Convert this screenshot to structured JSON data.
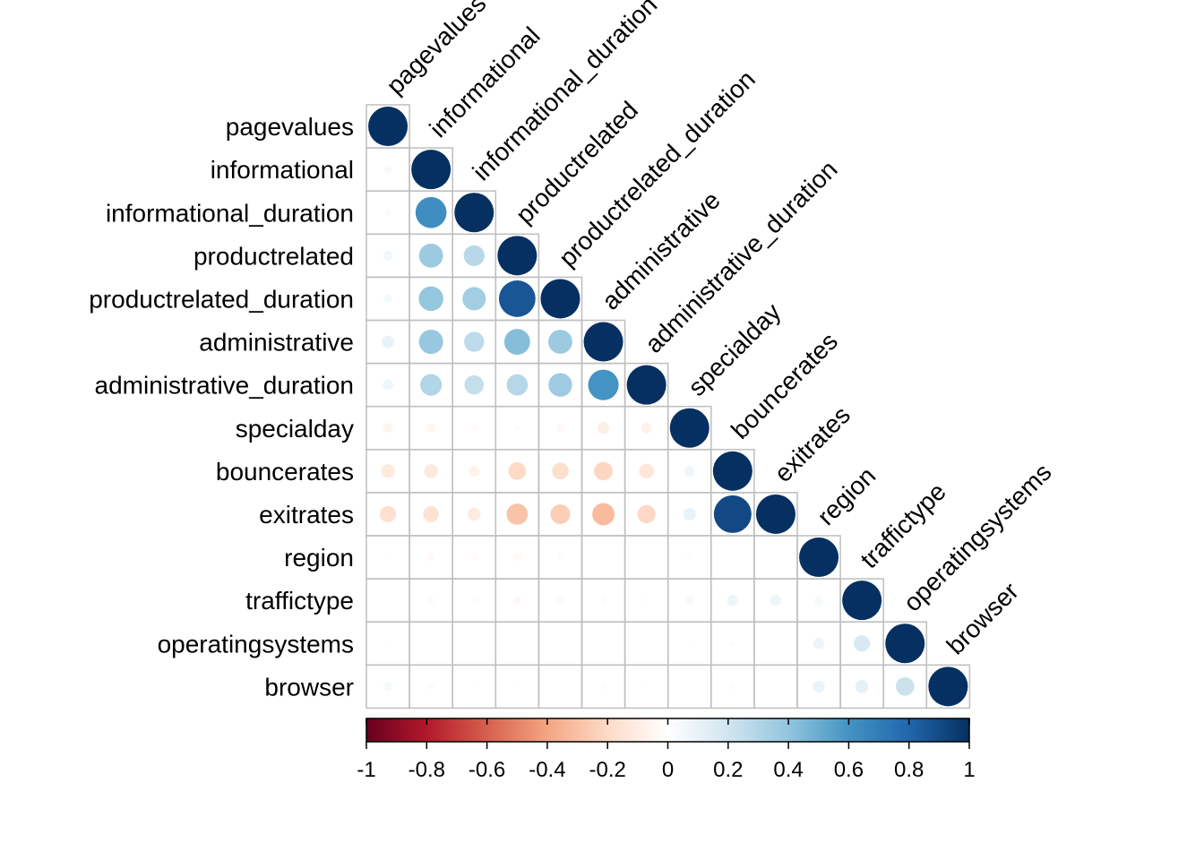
{
  "chart_data": {
    "type": "heatmap",
    "subtype": "correlation-circle-lower-triangle",
    "variables": [
      "pagevalues",
      "informational",
      "informational_duration",
      "productrelated",
      "productrelated_duration",
      "administrative",
      "administrative_duration",
      "specialday",
      "bouncerates",
      "exitrates",
      "region",
      "traffictype",
      "operatingsystems",
      "browser"
    ],
    "matrix": [
      [
        1.0
      ],
      [
        0.04,
        1.0
      ],
      [
        0.03,
        0.62,
        1.0
      ],
      [
        0.06,
        0.37,
        0.28,
        1.0
      ],
      [
        0.05,
        0.39,
        0.35,
        0.86,
        1.0
      ],
      [
        0.1,
        0.38,
        0.26,
        0.43,
        0.37,
        1.0
      ],
      [
        0.07,
        0.3,
        0.24,
        0.29,
        0.36,
        0.6,
        1.0
      ],
      [
        -0.06,
        -0.05,
        -0.03,
        -0.02,
        -0.04,
        -0.09,
        -0.07,
        1.0
      ],
      [
        -0.12,
        -0.12,
        -0.07,
        -0.2,
        -0.18,
        -0.22,
        -0.14,
        0.07,
        1.0
      ],
      [
        -0.17,
        -0.16,
        -0.11,
        -0.29,
        -0.25,
        -0.32,
        -0.21,
        0.1,
        0.91,
        1.0
      ],
      [
        -0.01,
        -0.04,
        -0.03,
        -0.04,
        -0.03,
        0.0,
        0.0,
        -0.02,
        0.0,
        0.0,
        1.0
      ],
      [
        0.01,
        -0.03,
        -0.02,
        -0.04,
        -0.04,
        -0.03,
        -0.01,
        0.05,
        0.08,
        0.08,
        0.05,
        1.0
      ],
      [
        0.01,
        0.0,
        0.0,
        0.0,
        0.0,
        0.0,
        0.0,
        0.01,
        0.02,
        0.01,
        0.08,
        0.17,
        1.0
      ],
      [
        0.05,
        -0.03,
        -0.01,
        -0.01,
        0.0,
        -0.02,
        -0.01,
        0.0,
        -0.02,
        0.0,
        0.09,
        0.11,
        0.22,
        1.0
      ]
    ],
    "legend": {
      "position": "bottom",
      "ticks": [
        "-1",
        "-0.8",
        "-0.6",
        "-0.4",
        "-0.2",
        "0",
        "0.2",
        "0.4",
        "0.6",
        "0.8",
        "1"
      ],
      "range": [
        -1,
        1
      ]
    },
    "colors": {
      "negative_strong": "#67001F",
      "negative_mid": "#D6604D",
      "neutral": "#FFFFFF",
      "positive_mid": "#4393C3",
      "positive_strong": "#053061",
      "grid": "#BEBEBE"
    }
  }
}
